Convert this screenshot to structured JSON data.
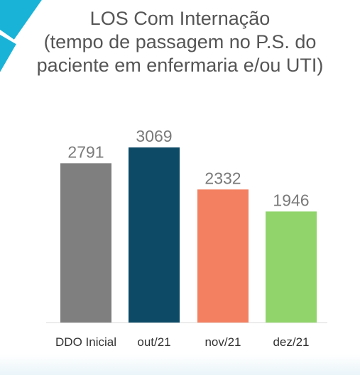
{
  "colors": {
    "accent": "#1ab3d8",
    "text": "#555555",
    "label_text": "#333333",
    "value_text": "#7a7a7a"
  },
  "chart_data": {
    "type": "bar",
    "title": [
      "LOS Com Internação",
      "(tempo de passagem no P.S. do",
      "paciente  em enfermaria e/ou UTI)"
    ],
    "categories": [
      "DDO Inicial",
      "out/21",
      "nov/21",
      "dez/21"
    ],
    "values": [
      2791,
      3069,
      2332,
      1946
    ],
    "colors": [
      "#7f7f7f",
      "#0c4a66",
      "#f28061",
      "#91d46c"
    ],
    "data_labels": [
      "2791",
      "3069",
      "2332",
      "1946"
    ],
    "xlabel": "",
    "ylabel": "",
    "grid": false,
    "legend": "none"
  }
}
